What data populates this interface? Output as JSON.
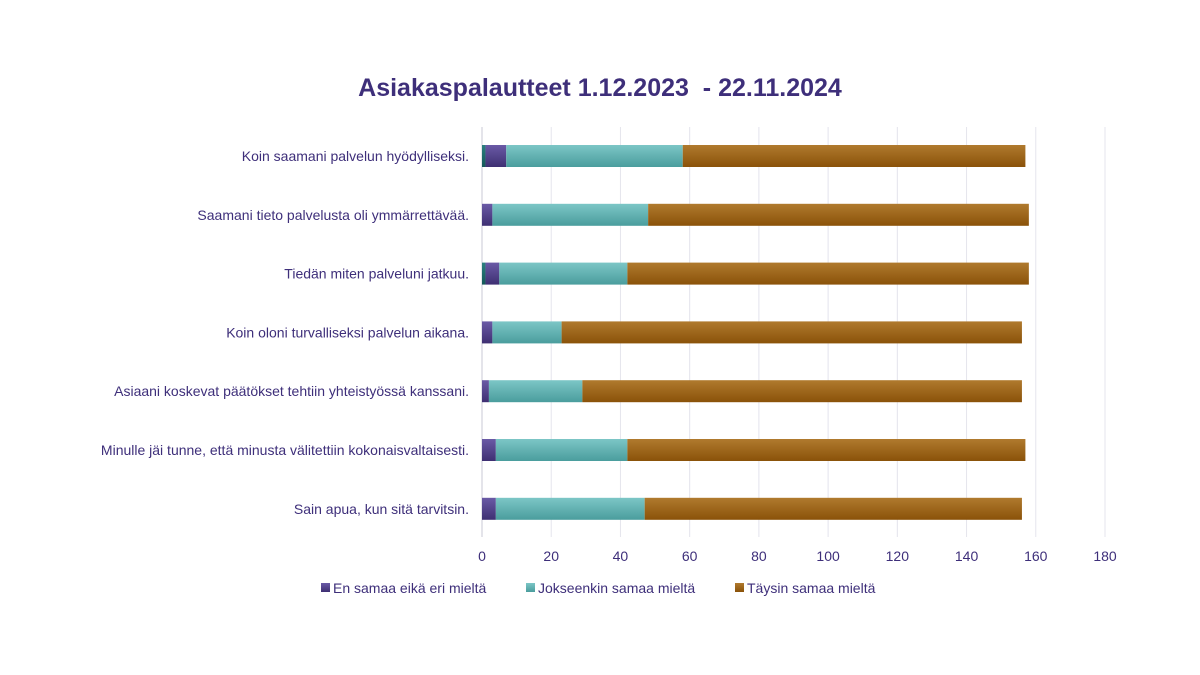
{
  "chart_data": {
    "type": "bar",
    "orientation": "horizontal",
    "stacked": true,
    "title": "Asiakaspalautteet 1.12.2023  - 22.11.2024",
    "categories": [
      "Koin saamani palvelun hyödylliseksi.",
      "Saamani tieto palvelusta oli ymmärrettävää.",
      "Tiedän miten palveluni jatkuu.",
      "Koin oloni turvalliseksi palvelun aikana.",
      "Asiaani koskevat päätökset tehtiin yhteistyössä kanssani.",
      "Minulle jäi tunne, että minusta välitettiin kokonaisvaltaisesti.",
      "Sain apua, kun sitä tarvitsin."
    ],
    "series": [
      {
        "name": "",
        "color": "#1f6b6b",
        "values": [
          1,
          0,
          1,
          0,
          0,
          0,
          0
        ]
      },
      {
        "name": "En samaa eikä eri mieltä",
        "color": "#4f3f86",
        "values": [
          6,
          3,
          4,
          3,
          2,
          4,
          4
        ]
      },
      {
        "name": "Jokseenkin samaa mieltä",
        "color": "#5aaeae",
        "values": [
          51,
          45,
          37,
          20,
          27,
          38,
          43
        ]
      },
      {
        "name": "Täysin samaa mieltä",
        "color": "#9a5c0c",
        "values": [
          99,
          110,
          116,
          133,
          127,
          115,
          109
        ]
      }
    ],
    "xlim": [
      0,
      180
    ],
    "xticks": [
      "0",
      "20",
      "40",
      "60",
      "80",
      "100",
      "120",
      "140",
      "160",
      "180"
    ],
    "grid": true,
    "legend_position": "bottom",
    "text_color": "#3e2f7a"
  }
}
